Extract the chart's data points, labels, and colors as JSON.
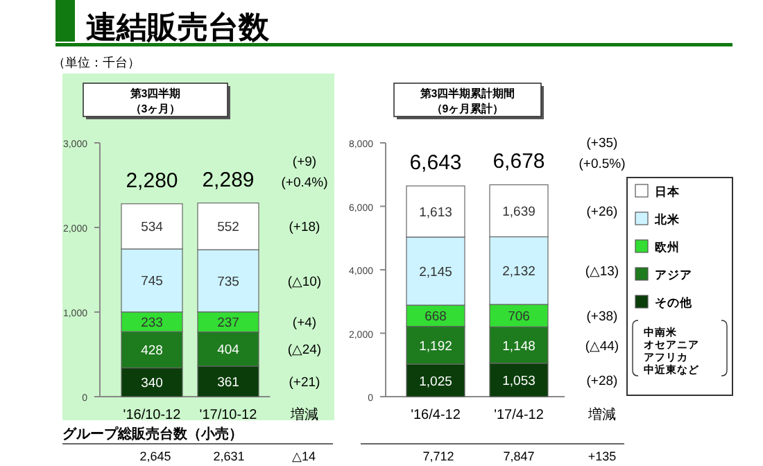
{
  "chart_data": [
    {
      "type": "bar",
      "stacked": true,
      "title": "第3四半期",
      "subtitle": "（3ヶ月）",
      "categories": [
        "'16/10-12",
        "'17/10-12",
        "増減"
      ],
      "series": [
        {
          "color": "#0b3d0b",
          "values": [
            340,
            361,
            null
          ]
        },
        {
          "color": "#1e7b1e",
          "values": [
            428,
            404,
            null
          ]
        },
        {
          "color": "#33dd33",
          "values": [
            233,
            237,
            null
          ]
        },
        {
          "color": "#ccf3ff",
          "values": [
            745,
            735,
            null
          ]
        },
        {
          "color": "#ffffff",
          "values": [
            534,
            552,
            null
          ]
        }
      ],
      "totals": [
        "2,280",
        "2,289",
        null
      ],
      "data_labels": true,
      "ylim": [
        0,
        3000
      ],
      "yticks": [
        0,
        {
          "value": 1000,
          "label": "1,000"
        },
        {
          "value": 2000,
          "label": "2,000"
        },
        {
          "value": 3000,
          "label": "3,000"
        }
      ],
      "annotations": [
        "連結販売台数",
        "（単位：千台）",
        "グループ総販売台数（小売）",
        "2,645",
        "2,631",
        "△14",
        "(+21)",
        "(△24)",
        "(+4)",
        "(△10)",
        "(+18)",
        "(+9)",
        "(+0.4%)"
      ]
    },
    {
      "type": "bar",
      "stacked": true,
      "title": "第3四半期累計期間",
      "subtitle": "（9ヶ月累計）",
      "categories": [
        "'16/4-12",
        "'17/4-12",
        "増減"
      ],
      "series": [
        {
          "name": "その他",
          "color": "#0b3d0b",
          "values": [
            1025,
            1053,
            null
          ],
          "value_labels": [
            "1,025",
            "1,053",
            null
          ]
        },
        {
          "name": "アジア",
          "color": "#1e7b1e",
          "values": [
            1192,
            1148,
            null
          ],
          "value_labels": [
            "1,192",
            "1,148",
            null
          ]
        },
        {
          "name": "欧州",
          "color": "#33dd33",
          "values": [
            668,
            706,
            null
          ],
          "value_labels": [
            "668",
            "706",
            null
          ]
        },
        {
          "name": "北米",
          "color": "#ccf3ff",
          "values": [
            2145,
            2132,
            null
          ],
          "value_labels": [
            "2,145",
            "2,132",
            null
          ]
        },
        {
          "name": "日本",
          "color": "#ffffff",
          "values": [
            1613,
            1639,
            null
          ],
          "value_labels": [
            "1,613",
            "1,639",
            null
          ]
        }
      ],
      "totals": [
        "6,643",
        "6,678",
        null
      ],
      "legend": "right",
      "ylim": [
        0,
        8000
      ],
      "yticks": [
        0,
        {
          "value": 2000,
          "label": "2,000"
        },
        {
          "value": 4000,
          "label": "4,000"
        },
        {
          "value": 6000,
          "label": "6,000"
        },
        {
          "value": 8000,
          "label": "8,000"
        }
      ],
      "annotations": [
        "中南米",
        "オセアニア",
        "アフリカ",
        "中近東など",
        "7,712",
        "7,847",
        "+135",
        "(+28)",
        "(△44)",
        "(+38)",
        "(△13)",
        "(+26)",
        "(+35)",
        "(+0.5%)"
      ]
    }
  ]
}
